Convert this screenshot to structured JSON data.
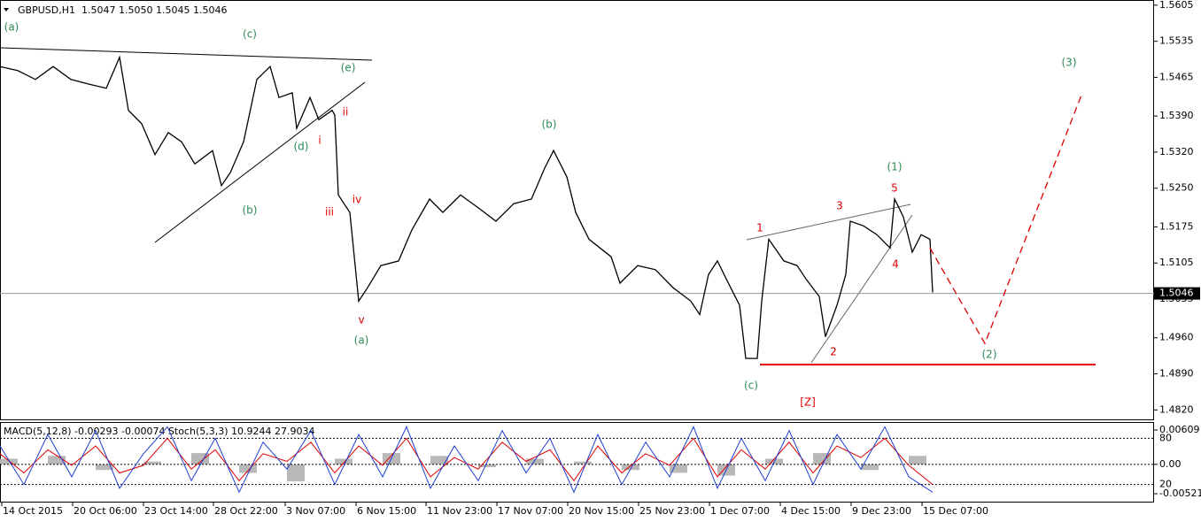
{
  "header": {
    "symbol": "GBPUSD,H1",
    "quote": "1.5047 1.5050 1.5045 1.5046"
  },
  "chart_data": {
    "type": "line",
    "color": "#000000",
    "x": [
      0,
      20,
      40,
      60,
      80,
      100,
      120,
      135,
      145,
      160,
      175,
      190,
      205,
      220,
      240,
      250,
      260,
      275,
      290,
      305,
      315,
      330,
      335,
      350,
      360,
      375,
      378,
      382,
      395,
      405,
      415,
      430,
      450,
      465,
      485,
      500,
      520,
      540,
      560,
      580,
      600,
      615,
      625,
      640,
      650,
      665,
      690,
      700,
      720,
      740,
      760,
      780,
      790,
      800,
      810,
      820,
      835,
      842,
      855,
      860,
      868,
      885,
      900,
      910,
      925,
      932,
      945,
      955,
      960,
      975,
      990,
      1005,
      1010,
      1015,
      1020,
      1030,
      1040,
      1050,
      1053
    ],
    "values": [
      1.5486,
      1.5478,
      1.5461,
      1.5486,
      1.5461,
      1.5452,
      1.5444,
      1.5504,
      1.5401,
      1.5375,
      1.5315,
      1.5358,
      1.534,
      1.5297,
      1.5323,
      1.5255,
      1.528,
      1.534,
      1.5461,
      1.5486,
      1.5426,
      1.5435,
      1.5366,
      1.5426,
      1.5383,
      1.5401,
      1.5392,
      1.5237,
      1.5203,
      1.5031,
      1.5057,
      1.51,
      1.5109,
      1.5169,
      1.5229,
      1.5203,
      1.5237,
      1.5212,
      1.5186,
      1.522,
      1.5229,
      1.5289,
      1.5323,
      1.5272,
      1.5203,
      1.5151,
      1.5117,
      1.5066,
      1.51,
      1.5092,
      1.5057,
      1.5031,
      1.5005,
      1.5083,
      1.5109,
      1.5074,
      1.5023,
      1.492,
      1.492,
      1.5031,
      1.5151,
      1.5109,
      1.51,
      1.5074,
      1.504,
      1.4962,
      1.5023,
      1.5083,
      1.5186,
      1.5177,
      1.516,
      1.5134,
      1.5229,
      1.5212,
      1.5194,
      1.5126,
      1.516,
      1.5151,
      1.5048
    ],
    "xlim": [
      0,
      1303
    ],
    "xticks": [
      {
        "value": 2,
        "label": "14 Oct 2015"
      },
      {
        "value": 82,
        "label": "20 Oct 06:00"
      },
      {
        "value": 162,
        "label": "23 Oct 14:00"
      },
      {
        "value": 241,
        "label": "28 Oct 22:00"
      },
      {
        "value": 322,
        "label": "3 Nov 07:00"
      },
      {
        "value": 402,
        "label": "6 Nov 15:00"
      },
      {
        "value": 481,
        "label": "11 Nov 23:00"
      },
      {
        "value": 561,
        "label": "17 Nov 07:00"
      },
      {
        "value": 641,
        "label": "20 Nov 15:00"
      },
      {
        "value": 721,
        "label": "25 Nov 23:00"
      },
      {
        "value": 801,
        "label": "1 Dec 07:00"
      },
      {
        "value": 881,
        "label": "4 Dec 15:00"
      },
      {
        "value": 961,
        "label": "9 Dec 23:00"
      },
      {
        "value": 1041,
        "label": "15 Dec 07:00"
      }
    ],
    "ylim": [
      1.48,
      1.5615
    ],
    "yticks": [
      1.5605,
      1.5535,
      1.5465,
      {
        "value": 1.539,
        "label": "1.5390"
      },
      {
        "value": 1.532,
        "label": "1.5320"
      },
      {
        "value": 1.525,
        "label": "1.5250"
      },
      1.5175,
      1.5105,
      1.5035,
      {
        "value": 1.496,
        "label": "1.4960"
      },
      {
        "value": 1.489,
        "label": "1.4890"
      },
      {
        "value": 1.482,
        "label": "1.4820"
      }
    ],
    "current_price": 1.5046,
    "projection": {
      "color": "#e00000",
      "x": [
        1050,
        1112,
        1222
      ],
      "values": [
        1.5134,
        1.4949,
        1.5435
      ]
    },
    "support": {
      "color": "#e00000",
      "x": [
        858,
        1237
      ],
      "values": [
        1.4908,
        1.4908
      ]
    },
    "wave_labels": [
      "(a)",
      "(c)",
      "(e)",
      "(d)",
      "(b)",
      "(b)",
      "(a)",
      "(c)",
      "(1)",
      "(2)",
      "(3)",
      "ii",
      "i",
      "iv",
      "iii",
      "v",
      "1",
      "3",
      "5",
      "4",
      "2",
      "[Z]"
    ],
    "indicator": {
      "title": "MACD(5,12,8) -0.00293 -0.00074  Stoch(5,3,3) 10.9244 27.9034",
      "macd_ylim": [
        -0.0063,
        0.00735
      ],
      "macd_yticks": [
        0.00609,
        {
          "value": 0,
          "label": "0.00"
        },
        -0.00521
      ],
      "macd_x": [
        0,
        54,
        108,
        162,
        216,
        270,
        324,
        378,
        432,
        486,
        540,
        594,
        648,
        702,
        756,
        810,
        864,
        918,
        972,
        1026
      ],
      "macd_values": [
        0.001,
        0.0015,
        -0.001,
        0.0005,
        0.002,
        -0.0015,
        -0.003,
        0.001,
        0.002,
        0.0015,
        -0.0005,
        0.001,
        0.0005,
        -0.001,
        -0.0015,
        -0.002,
        0.001,
        0.002,
        -0.001,
        0.0015
      ],
      "stoch_ylim": [
        0,
        100
      ],
      "stoch_yticks": [
        80,
        20
      ],
      "stoch_x": [
        0,
        27,
        54,
        81,
        108,
        135,
        162,
        189,
        216,
        243,
        270,
        297,
        324,
        351,
        378,
        405,
        432,
        459,
        486,
        513,
        540,
        567,
        594,
        621,
        648,
        675,
        702,
        729,
        756,
        783,
        810,
        837,
        864,
        891,
        918,
        945,
        972,
        999,
        1026,
        1053
      ],
      "main": [
        70,
        20,
        85,
        30,
        90,
        15,
        60,
        95,
        25,
        80,
        10,
        75,
        40,
        90,
        20,
        85,
        30,
        95,
        15,
        70,
        25,
        90,
        35,
        80,
        10,
        85,
        20,
        75,
        30,
        95,
        15,
        80,
        25,
        90,
        20,
        85,
        40,
        95,
        30,
        10
      ],
      "signal": [
        60,
        35,
        65,
        45,
        70,
        35,
        45,
        80,
        40,
        65,
        25,
        60,
        50,
        75,
        35,
        70,
        45,
        80,
        30,
        55,
        40,
        75,
        50,
        65,
        25,
        70,
        35,
        60,
        45,
        80,
        30,
        65,
        40,
        75,
        35,
        70,
        55,
        80,
        45,
        20
      ],
      "main_color": "#1f3fd0",
      "signal_color": "#e00000"
    }
  }
}
